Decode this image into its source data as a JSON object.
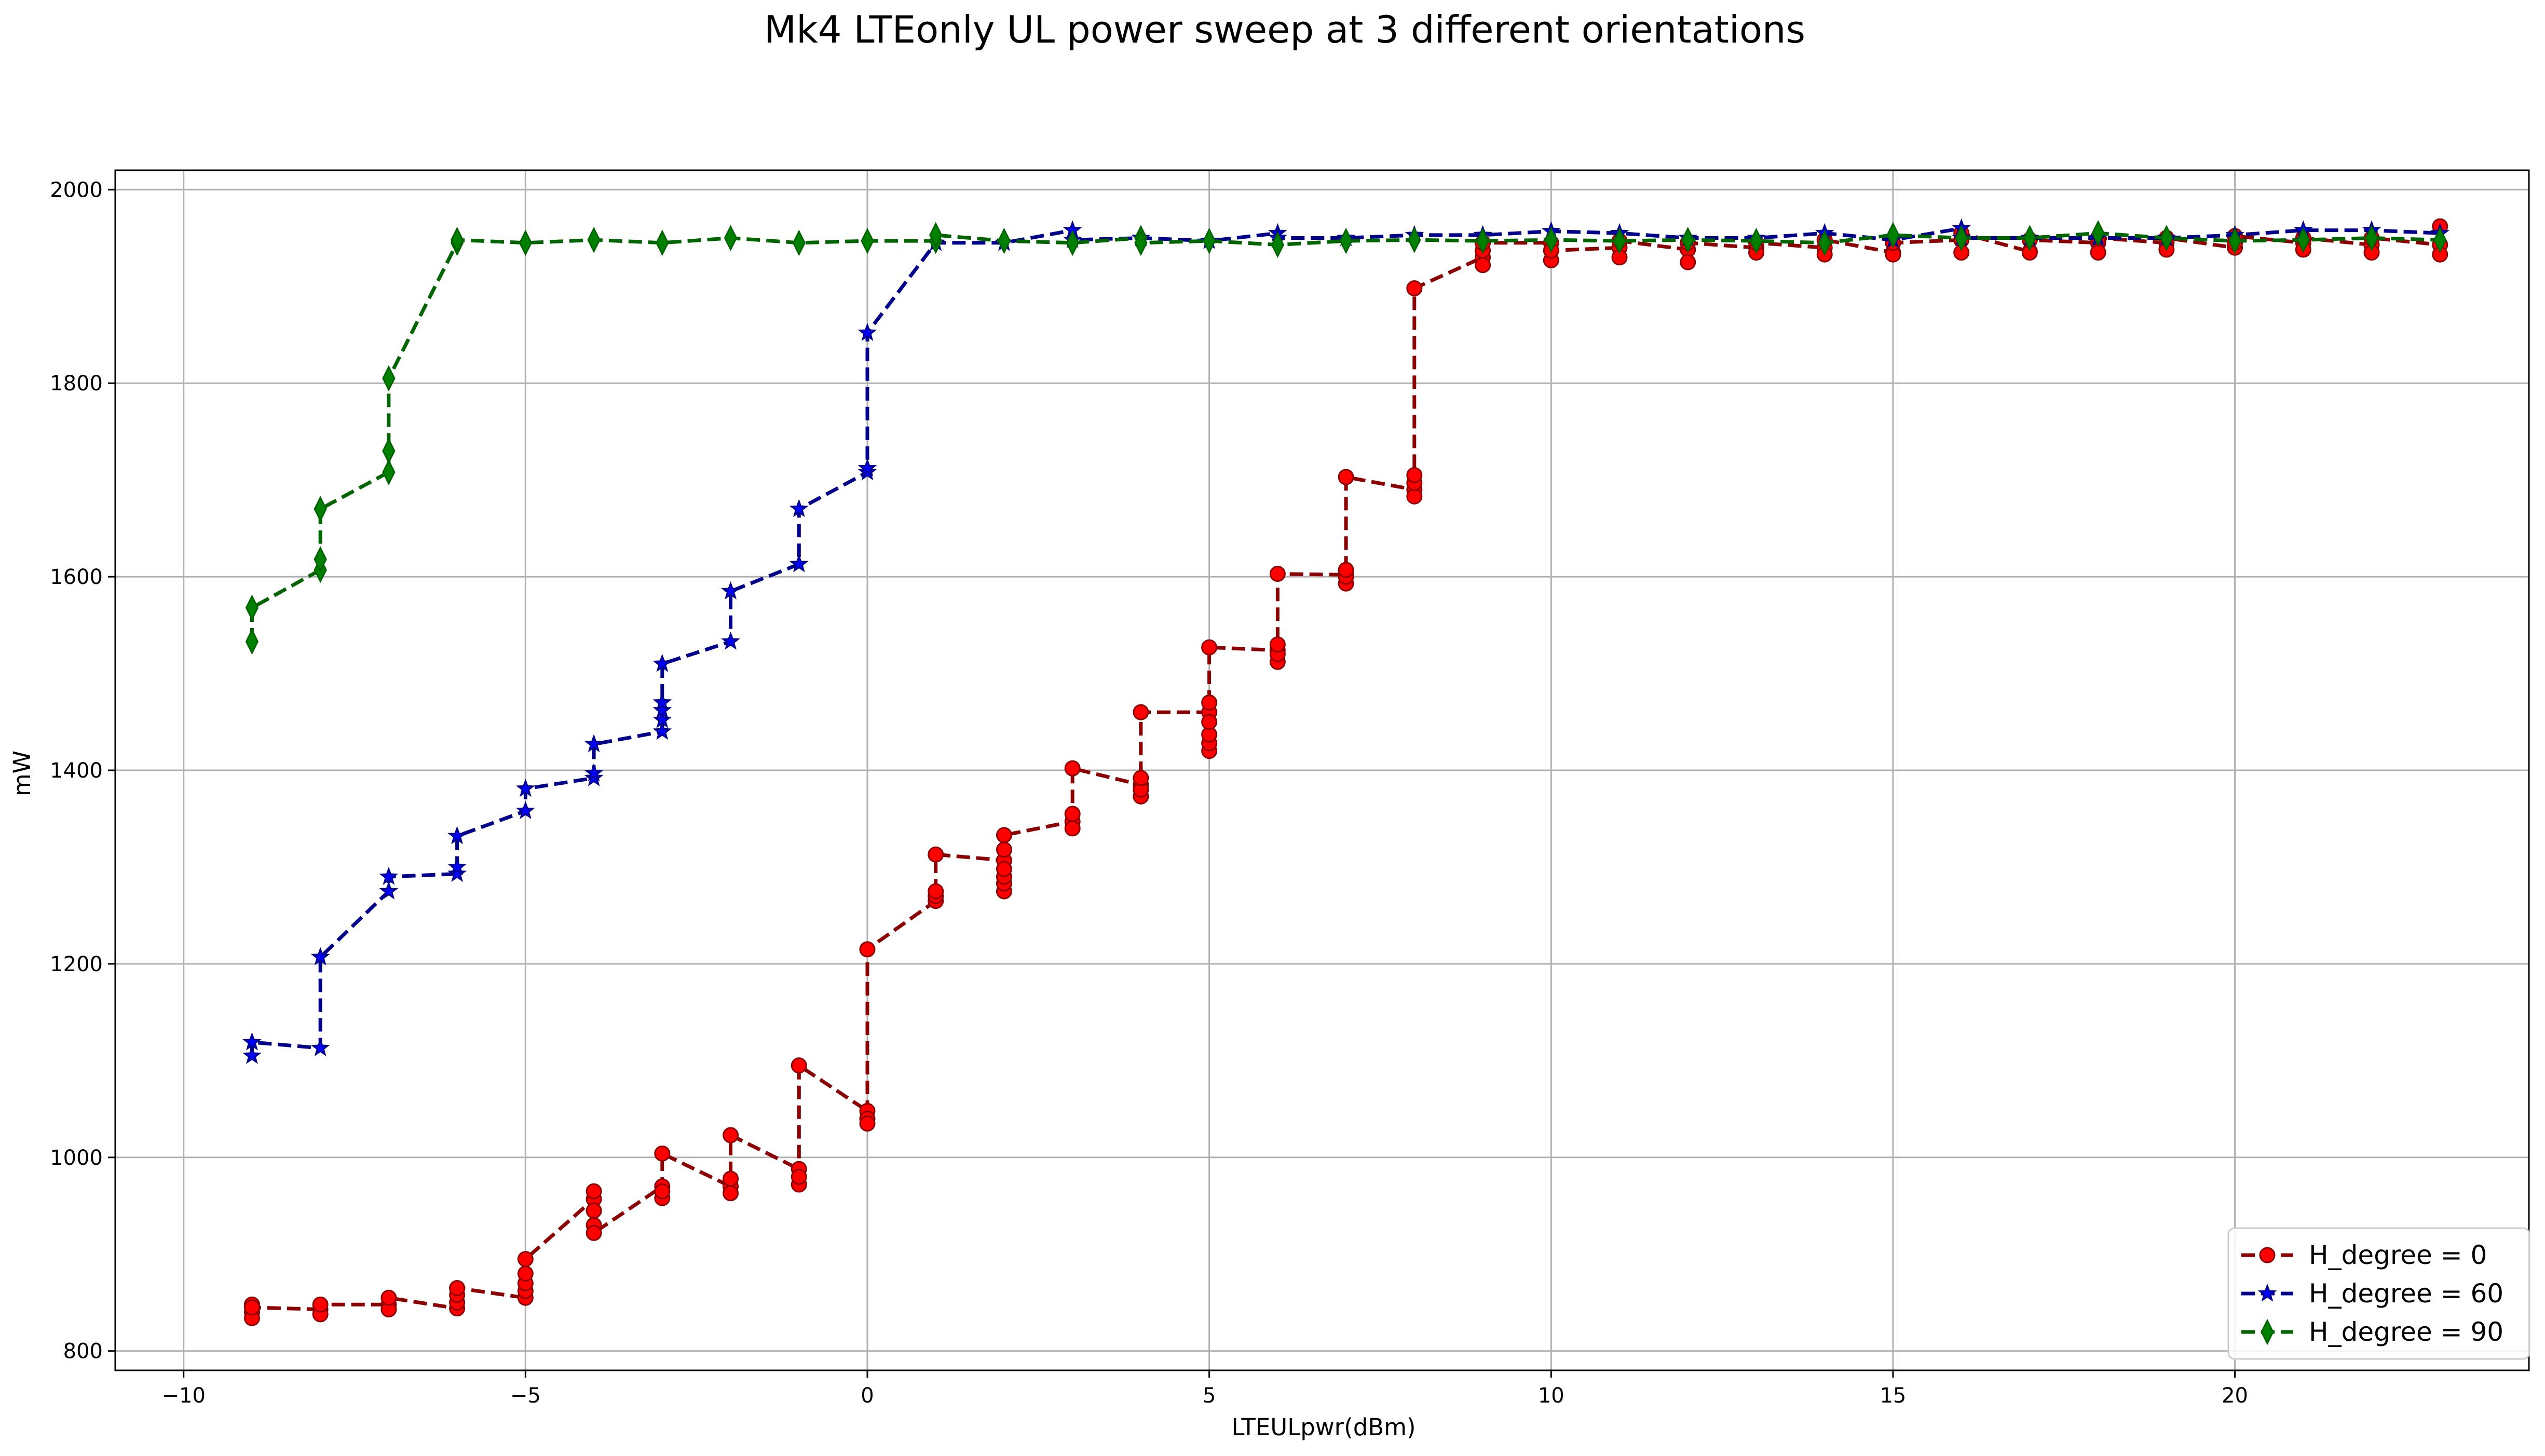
{
  "figure": {
    "title": "Mk4 LTEonly UL power sweep at 3 different orientations"
  },
  "chart_data": {
    "type": "line",
    "title": "Mk4 LTEonly UL power sweep at 3 different orientations",
    "xlabel": "LTEULpwr(dBm)",
    "ylabel": "mW",
    "xlim": [
      -11,
      24.3
    ],
    "ylim": [
      780,
      2020
    ],
    "xticks": [
      -10,
      -5,
      0,
      5,
      10,
      15,
      20
    ],
    "xtick_labels": [
      "−10",
      "−5",
      "0",
      "5",
      "10",
      "15",
      "20"
    ],
    "yticks": [
      800,
      1000,
      1200,
      1400,
      1600,
      1800,
      2000
    ],
    "ytick_labels": [
      "800",
      "1000",
      "1200",
      "1400",
      "1600",
      "1800",
      "2000"
    ],
    "grid": true,
    "legend_position": "lower-right",
    "series": [
      {
        "name": "H_degree = 0",
        "color": "#8b0000",
        "marker_fill": "#ff0000",
        "marker": "circle",
        "points": [
          [
            -9,
            848
          ],
          [
            -9,
            840
          ],
          [
            -9,
            834
          ],
          [
            -9,
            845
          ],
          [
            -8,
            843
          ],
          [
            -8,
            838
          ],
          [
            -8,
            848
          ],
          [
            -7,
            848
          ],
          [
            -7,
            843
          ],
          [
            -7,
            855
          ],
          [
            -6,
            844
          ],
          [
            -6,
            850
          ],
          [
            -6,
            858
          ],
          [
            -6,
            865
          ],
          [
            -5,
            855
          ],
          [
            -5,
            862
          ],
          [
            -5,
            870
          ],
          [
            -5,
            880
          ],
          [
            -5,
            895
          ],
          [
            -4,
            957
          ],
          [
            -4,
            965
          ],
          [
            -4,
            945
          ],
          [
            -4,
            930
          ],
          [
            -4,
            922
          ],
          [
            -3,
            970
          ],
          [
            -3,
            958
          ],
          [
            -3,
            965
          ],
          [
            -3,
            1004
          ],
          [
            -2,
            970
          ],
          [
            -2,
            963
          ],
          [
            -2,
            978
          ],
          [
            -2,
            1023
          ],
          [
            -1,
            988
          ],
          [
            -1,
            972
          ],
          [
            -1,
            980
          ],
          [
            -1,
            1095
          ],
          [
            0,
            1048
          ],
          [
            0,
            1040
          ],
          [
            0,
            1035
          ],
          [
            0,
            1215
          ],
          [
            1,
            1265
          ],
          [
            1,
            1270
          ],
          [
            1,
            1275
          ],
          [
            1,
            1313
          ],
          [
            2,
            1307
          ],
          [
            2,
            1275
          ],
          [
            2,
            1283
          ],
          [
            2,
            1290
          ],
          [
            2,
            1298
          ],
          [
            2,
            1318
          ],
          [
            2,
            1333
          ],
          [
            3,
            1347
          ],
          [
            3,
            1340
          ],
          [
            3,
            1355
          ],
          [
            3,
            1402
          ],
          [
            4,
            1385
          ],
          [
            4,
            1373
          ],
          [
            4,
            1380
          ],
          [
            4,
            1392
          ],
          [
            4,
            1460
          ],
          [
            5,
            1460
          ],
          [
            5,
            1420
          ],
          [
            5,
            1428
          ],
          [
            5,
            1437
          ],
          [
            5,
            1450
          ],
          [
            5,
            1470
          ],
          [
            5,
            1527
          ],
          [
            6,
            1524
          ],
          [
            6,
            1512
          ],
          [
            6,
            1520
          ],
          [
            6,
            1530
          ],
          [
            6,
            1603
          ],
          [
            7,
            1602
          ],
          [
            7,
            1593
          ],
          [
            7,
            1600
          ],
          [
            7,
            1607
          ],
          [
            7,
            1703
          ],
          [
            8,
            1690
          ],
          [
            8,
            1683
          ],
          [
            8,
            1697
          ],
          [
            8,
            1705
          ],
          [
            8,
            1898
          ],
          [
            9,
            1930
          ],
          [
            9,
            1922
          ],
          [
            9,
            1937
          ],
          [
            9,
            1945
          ],
          [
            10,
            1945
          ],
          [
            10,
            1927
          ],
          [
            10,
            1937
          ],
          [
            11,
            1940
          ],
          [
            11,
            1930
          ],
          [
            11,
            1947
          ],
          [
            12,
            1938
          ],
          [
            12,
            1925
          ],
          [
            12,
            1945
          ],
          [
            13,
            1940
          ],
          [
            13,
            1935
          ],
          [
            13,
            1945
          ],
          [
            14,
            1940
          ],
          [
            14,
            1933
          ],
          [
            14,
            1948
          ],
          [
            15,
            1935
          ],
          [
            15,
            1933
          ],
          [
            15,
            1945
          ],
          [
            16,
            1948
          ],
          [
            16,
            1935
          ],
          [
            16,
            1955
          ],
          [
            17,
            1936
          ],
          [
            17,
            1935
          ],
          [
            17,
            1948
          ],
          [
            18,
            1945
          ],
          [
            18,
            1935
          ],
          [
            18,
            1950
          ],
          [
            19,
            1945
          ],
          [
            19,
            1938
          ],
          [
            19,
            1950
          ],
          [
            20,
            1940
          ],
          [
            20,
            1945
          ],
          [
            20,
            1952
          ],
          [
            21,
            1945
          ],
          [
            21,
            1938
          ],
          [
            21,
            1950
          ],
          [
            22,
            1943
          ],
          [
            22,
            1935
          ],
          [
            22,
            1950
          ],
          [
            23,
            1943
          ],
          [
            23,
            1933
          ],
          [
            23,
            1962
          ]
        ]
      },
      {
        "name": "H_degree = 60",
        "color": "#00008b",
        "marker_fill": "#0000ff",
        "marker": "star",
        "points": [
          [
            -9,
            1105
          ],
          [
            -9,
            1119
          ],
          [
            -8,
            1113
          ],
          [
            -8,
            1207
          ],
          [
            -7,
            1275
          ],
          [
            -7,
            1290
          ],
          [
            -6,
            1293
          ],
          [
            -6,
            1300
          ],
          [
            -6,
            1332
          ],
          [
            -5,
            1358
          ],
          [
            -5,
            1381
          ],
          [
            -4,
            1392
          ],
          [
            -4,
            1397
          ],
          [
            -4,
            1427
          ],
          [
            -3,
            1440
          ],
          [
            -3,
            1452
          ],
          [
            -3,
            1462
          ],
          [
            -3,
            1470
          ],
          [
            -3,
            1510
          ],
          [
            -2,
            1533
          ],
          [
            -2,
            1585
          ],
          [
            -1,
            1613
          ],
          [
            -1,
            1670
          ],
          [
            0,
            1708
          ],
          [
            0,
            1712
          ],
          [
            0,
            1852
          ],
          [
            1,
            1945
          ],
          [
            2,
            1945
          ],
          [
            3,
            1958
          ],
          [
            3,
            1948
          ],
          [
            4,
            1950
          ],
          [
            5,
            1947
          ],
          [
            6,
            1955
          ],
          [
            6,
            1950
          ],
          [
            7,
            1950
          ],
          [
            8,
            1953
          ],
          [
            9,
            1953
          ],
          [
            10,
            1957
          ],
          [
            11,
            1955
          ],
          [
            12,
            1950
          ],
          [
            13,
            1950
          ],
          [
            14,
            1955
          ],
          [
            15,
            1948
          ],
          [
            16,
            1960
          ],
          [
            16,
            1950
          ],
          [
            17,
            1950
          ],
          [
            18,
            1950
          ],
          [
            19,
            1950
          ],
          [
            20,
            1953
          ],
          [
            21,
            1958
          ],
          [
            22,
            1958
          ],
          [
            23,
            1955
          ]
        ]
      },
      {
        "name": "H_degree = 90",
        "color": "#006400",
        "marker_fill": "#008000",
        "marker": "thin_diamond",
        "points": [
          [
            -9,
            1533
          ],
          [
            -9,
            1568
          ],
          [
            -8,
            1607
          ],
          [
            -8,
            1618
          ],
          [
            -8,
            1670
          ],
          [
            -7,
            1708
          ],
          [
            -7,
            1730
          ],
          [
            -7,
            1805
          ],
          [
            -6,
            1945
          ],
          [
            -6,
            1948
          ],
          [
            -5,
            1945
          ],
          [
            -4,
            1948
          ],
          [
            -3,
            1945
          ],
          [
            -2,
            1950
          ],
          [
            -1,
            1945
          ],
          [
            0,
            1947
          ],
          [
            1,
            1947
          ],
          [
            1,
            1953
          ],
          [
            2,
            1947
          ],
          [
            3,
            1945
          ],
          [
            4,
            1950
          ],
          [
            4,
            1945
          ],
          [
            5,
            1947
          ],
          [
            6,
            1943
          ],
          [
            7,
            1947
          ],
          [
            8,
            1948
          ],
          [
            9,
            1947
          ],
          [
            10,
            1948
          ],
          [
            11,
            1947
          ],
          [
            12,
            1948
          ],
          [
            13,
            1947
          ],
          [
            14,
            1945
          ],
          [
            15,
            1953
          ],
          [
            16,
            1950
          ],
          [
            17,
            1950
          ],
          [
            18,
            1955
          ],
          [
            19,
            1950
          ],
          [
            20,
            1947
          ],
          [
            21,
            1948
          ],
          [
            22,
            1950
          ],
          [
            23,
            1948
          ]
        ]
      }
    ]
  }
}
